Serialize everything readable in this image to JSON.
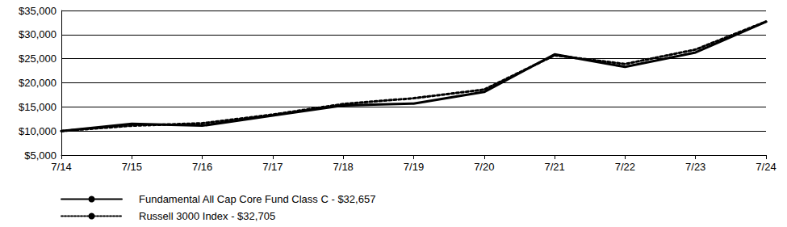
{
  "chart_data": {
    "type": "line",
    "categories": [
      "7/14",
      "7/15",
      "7/16",
      "7/17",
      "7/18",
      "7/19",
      "7/20",
      "7/21",
      "7/22",
      "7/23",
      "7/24"
    ],
    "series": [
      {
        "name": "Fundamental All Cap Core Fund Class C - $32,657",
        "color": "#000000",
        "line_style": "solid",
        "values": [
          10000,
          11500,
          11100,
          13200,
          15300,
          15700,
          18100,
          25900,
          23300,
          26300,
          32657
        ]
      },
      {
        "name": "Russell 3000 Index - $32,705",
        "color": "#000000",
        "line_style": "dotted",
        "values": [
          10000,
          11100,
          11600,
          13400,
          15600,
          16800,
          18600,
          25700,
          23900,
          26900,
          32705
        ]
      }
    ],
    "ylim": [
      5000,
      35000
    ],
    "yticks": [
      {
        "value": 5000,
        "label": "$5,000"
      },
      {
        "value": 10000,
        "label": "$10,000"
      },
      {
        "value": 15000,
        "label": "$15,000"
      },
      {
        "value": 20000,
        "label": "$20,000"
      },
      {
        "value": 25000,
        "label": "$25,000"
      },
      {
        "value": 30000,
        "label": "$30,000"
      },
      {
        "value": 35000,
        "label": "$35,000"
      }
    ],
    "grid": true,
    "legend": "bottom-left"
  }
}
